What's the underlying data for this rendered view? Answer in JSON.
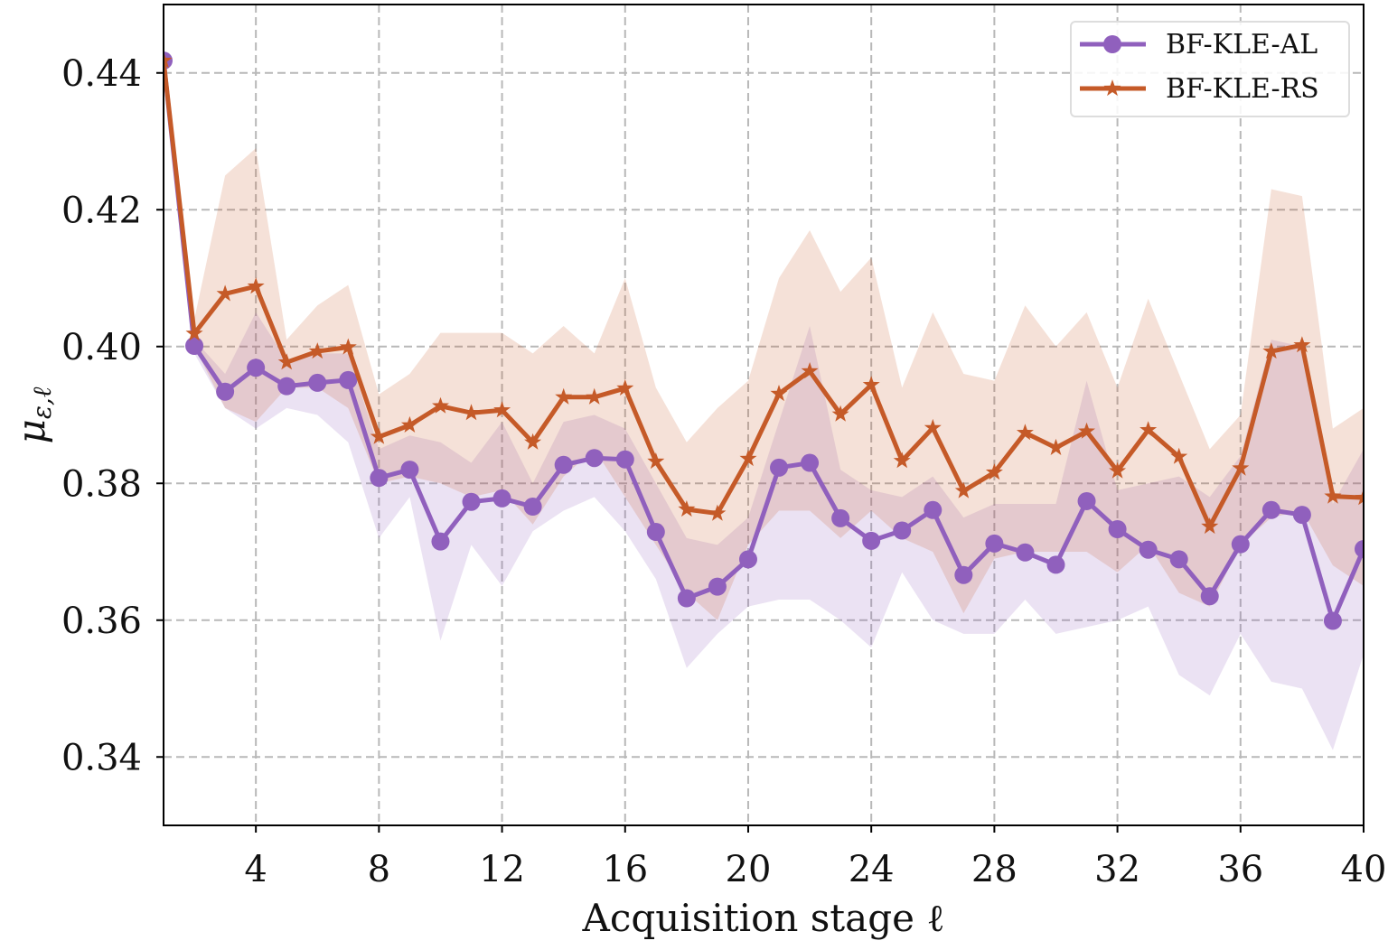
{
  "chart_data": {
    "type": "line",
    "xlabel": "Acquisition stage ℓ",
    "ylabel": {
      "symbol": "μ",
      "subscript": "ε,ℓ"
    },
    "xlim": [
      1,
      40
    ],
    "ylim": [
      0.33,
      0.45
    ],
    "xticks": [
      4,
      8,
      12,
      16,
      20,
      24,
      28,
      32,
      36,
      40
    ],
    "yticks": [
      0.34,
      0.36,
      0.38,
      {
        "value": 0.4,
        "label": "0.40"
      },
      0.42,
      0.44
    ],
    "grid": true,
    "legend": "upper right",
    "x": [
      1,
      2,
      3,
      4,
      5,
      6,
      7,
      8,
      9,
      10,
      11,
      12,
      13,
      14,
      15,
      16,
      17,
      18,
      19,
      20,
      21,
      22,
      23,
      24,
      25,
      26,
      27,
      28,
      29,
      30,
      31,
      32,
      33,
      34,
      35,
      36,
      37,
      38,
      39,
      40
    ],
    "series": [
      {
        "name": "BF-KLE-AL",
        "color": "#9060bd",
        "marker": "circle",
        "values": [
          0.4418,
          0.4001,
          0.3934,
          0.3969,
          0.3942,
          0.3947,
          0.3951,
          0.3808,
          0.382,
          0.3715,
          0.3773,
          0.3778,
          0.3766,
          0.3827,
          0.3837,
          0.3835,
          0.3729,
          0.3632,
          0.3649,
          0.3689,
          0.3823,
          0.383,
          0.3749,
          0.3716,
          0.3731,
          0.3761,
          0.3666,
          0.3712,
          0.3699,
          0.3681,
          0.3774,
          0.3733,
          0.3703,
          0.3689,
          0.3635,
          0.3711,
          0.3761,
          0.3754,
          0.3599,
          0.3704
        ],
        "upper": [
          0.442,
          0.401,
          0.396,
          0.405,
          0.398,
          0.399,
          0.399,
          0.385,
          0.387,
          0.386,
          0.383,
          0.389,
          0.38,
          0.389,
          0.39,
          0.388,
          0.38,
          0.372,
          0.371,
          0.375,
          0.389,
          0.403,
          0.382,
          0.379,
          0.378,
          0.381,
          0.375,
          0.377,
          0.377,
          0.377,
          0.395,
          0.379,
          0.38,
          0.381,
          0.378,
          0.384,
          0.401,
          0.4,
          0.377,
          0.385
        ],
        "lower": [
          0.442,
          0.399,
          0.391,
          0.388,
          0.391,
          0.39,
          0.386,
          0.372,
          0.378,
          0.357,
          0.371,
          0.365,
          0.373,
          0.376,
          0.378,
          0.373,
          0.366,
          0.353,
          0.358,
          0.362,
          0.363,
          0.363,
          0.36,
          0.356,
          0.367,
          0.36,
          0.358,
          0.358,
          0.363,
          0.358,
          0.359,
          0.36,
          0.362,
          0.352,
          0.349,
          0.358,
          0.351,
          0.35,
          0.341,
          0.355
        ]
      },
      {
        "name": "BF-KLE-RS",
        "color": "#c55a28",
        "marker": "star",
        "values": [
          0.4418,
          0.4019,
          0.4077,
          0.4088,
          0.3977,
          0.3993,
          0.3999,
          0.3868,
          0.3885,
          0.3913,
          0.3903,
          0.3907,
          0.386,
          0.3926,
          0.3926,
          0.3939,
          0.3832,
          0.3762,
          0.3756,
          0.3836,
          0.3931,
          0.3964,
          0.3901,
          0.3944,
          0.3833,
          0.3881,
          0.3789,
          0.3816,
          0.3874,
          0.3852,
          0.3876,
          0.3818,
          0.3878,
          0.3839,
          0.3737,
          0.3822,
          0.3993,
          0.4002,
          0.3781,
          0.3779
        ],
        "upper": [
          0.442,
          0.404,
          0.425,
          0.429,
          0.401,
          0.406,
          0.409,
          0.393,
          0.396,
          0.402,
          0.402,
          0.402,
          0.399,
          0.403,
          0.399,
          0.41,
          0.394,
          0.386,
          0.391,
          0.395,
          0.41,
          0.417,
          0.408,
          0.413,
          0.394,
          0.405,
          0.396,
          0.395,
          0.406,
          0.4,
          0.405,
          0.394,
          0.407,
          0.396,
          0.385,
          0.39,
          0.423,
          0.422,
          0.388,
          0.391
        ],
        "lower": [
          0.442,
          0.4,
          0.391,
          0.389,
          0.394,
          0.394,
          0.391,
          0.38,
          0.381,
          0.38,
          0.378,
          0.379,
          0.374,
          0.381,
          0.385,
          0.378,
          0.371,
          0.364,
          0.36,
          0.371,
          0.376,
          0.376,
          0.372,
          0.376,
          0.372,
          0.37,
          0.361,
          0.369,
          0.37,
          0.37,
          0.37,
          0.367,
          0.371,
          0.364,
          0.362,
          0.371,
          0.375,
          0.376,
          0.368,
          0.365
        ]
      }
    ]
  }
}
